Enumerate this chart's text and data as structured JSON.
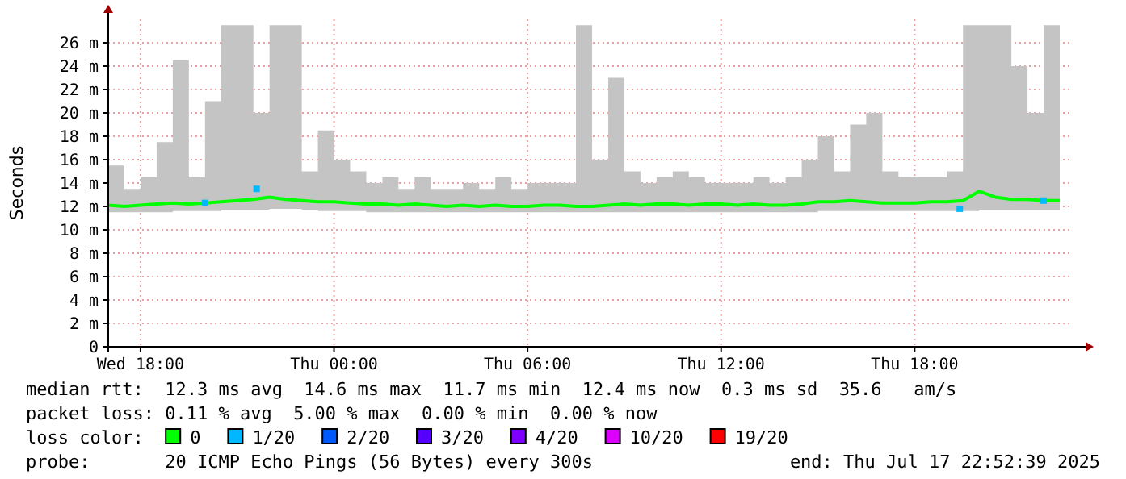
{
  "chart_data": {
    "type": "line",
    "ylabel": "Seconds",
    "legend_title": "loss color:",
    "legend": "bottom",
    "grid": true,
    "xlim": [
      "2025-07-16T17:00",
      "2025-07-17T22:54"
    ],
    "xticks": [
      {
        "value": "2025-07-16T18:00",
        "label": "Wed 18:00"
      },
      {
        "value": "2025-07-17T00:00",
        "label": "Thu 00:00"
      },
      {
        "value": "2025-07-17T06:00",
        "label": "Thu 06:00"
      },
      {
        "value": "2025-07-17T12:00",
        "label": "Thu 12:00"
      },
      {
        "value": "2025-07-17T18:00",
        "label": "Thu 18:00"
      }
    ],
    "ylim": [
      0,
      28
    ],
    "yticks": [
      0,
      {
        "value": 2,
        "label": "2 m"
      },
      {
        "value": 4,
        "label": "4 m"
      },
      {
        "value": 6,
        "label": "6 m"
      },
      {
        "value": 8,
        "label": "8 m"
      },
      {
        "value": 10,
        "label": "10 m"
      },
      {
        "value": 12,
        "label": "12 m"
      },
      {
        "value": 14,
        "label": "14 m"
      },
      {
        "value": 16,
        "label": "16 m"
      },
      {
        "value": 18,
        "label": "18 m"
      },
      {
        "value": 20,
        "label": "20 m"
      },
      {
        "value": 22,
        "label": "22 m"
      },
      {
        "value": 24,
        "label": "24 m"
      },
      {
        "value": 26,
        "label": "26 m"
      }
    ],
    "x": [
      "2025-07-16T17:00",
      "2025-07-16T17:30",
      "2025-07-16T18:00",
      "2025-07-16T18:30",
      "2025-07-16T19:00",
      "2025-07-16T19:30",
      "2025-07-16T20:00",
      "2025-07-16T20:30",
      "2025-07-16T21:00",
      "2025-07-16T21:30",
      "2025-07-16T22:00",
      "2025-07-16T22:30",
      "2025-07-16T23:00",
      "2025-07-16T23:30",
      "2025-07-17T00:00",
      "2025-07-17T00:30",
      "2025-07-17T01:00",
      "2025-07-17T01:30",
      "2025-07-17T02:00",
      "2025-07-17T02:30",
      "2025-07-17T03:00",
      "2025-07-17T03:30",
      "2025-07-17T04:00",
      "2025-07-17T04:30",
      "2025-07-17T05:00",
      "2025-07-17T05:30",
      "2025-07-17T06:00",
      "2025-07-17T06:30",
      "2025-07-17T07:00",
      "2025-07-17T07:30",
      "2025-07-17T08:00",
      "2025-07-17T08:30",
      "2025-07-17T09:00",
      "2025-07-17T09:30",
      "2025-07-17T10:00",
      "2025-07-17T10:30",
      "2025-07-17T11:00",
      "2025-07-17T11:30",
      "2025-07-17T12:00",
      "2025-07-17T12:30",
      "2025-07-17T13:00",
      "2025-07-17T13:30",
      "2025-07-17T14:00",
      "2025-07-17T14:30",
      "2025-07-17T15:00",
      "2025-07-17T15:30",
      "2025-07-17T16:00",
      "2025-07-17T16:30",
      "2025-07-17T17:00",
      "2025-07-17T17:30",
      "2025-07-17T18:00",
      "2025-07-17T18:30",
      "2025-07-17T19:00",
      "2025-07-17T19:30",
      "2025-07-17T20:00",
      "2025-07-17T20:30",
      "2025-07-17T21:00",
      "2025-07-17T21:30",
      "2025-07-17T22:00",
      "2025-07-17T22:30"
    ],
    "series": [
      {
        "name": "0",
        "color": "#00ff00",
        "values": [
          12.1,
          12,
          12.1,
          12.2,
          12.3,
          12.2,
          12.3,
          12.4,
          12.5,
          12.6,
          12.8,
          12.6,
          12.5,
          12.4,
          12.4,
          12.3,
          12.2,
          12.2,
          12.1,
          12.2,
          12.1,
          12,
          12.1,
          12,
          12.1,
          12,
          12,
          12.1,
          12.1,
          12,
          12,
          12.1,
          12.2,
          12.1,
          12.2,
          12.2,
          12.1,
          12.2,
          12.2,
          12.1,
          12.2,
          12.1,
          12.1,
          12.2,
          12.4,
          12.4,
          12.5,
          12.4,
          12.3,
          12.3,
          12.3,
          12.4,
          12.4,
          12.5,
          13.3,
          12.8,
          12.6,
          12.6,
          12.5,
          12.5
        ],
        "lower": [
          11.5,
          11.5,
          11.5,
          11.5,
          11.6,
          11.6,
          11.6,
          11.7,
          11.7,
          11.7,
          11.8,
          11.8,
          11.7,
          11.6,
          11.6,
          11.6,
          11.5,
          11.5,
          11.5,
          11.5,
          11.5,
          11.5,
          11.5,
          11.5,
          11.5,
          11.5,
          11.5,
          11.5,
          11.5,
          11.5,
          11.5,
          11.5,
          11.5,
          11.5,
          11.5,
          11.5,
          11.5,
          11.5,
          11.5,
          11.5,
          11.5,
          11.5,
          11.5,
          11.5,
          11.6,
          11.6,
          11.6,
          11.6,
          11.6,
          11.6,
          11.6,
          11.6,
          11.6,
          11.6,
          11.7,
          11.7,
          11.7,
          11.7,
          11.7,
          11.7
        ],
        "upper": [
          15.5,
          13.5,
          14.5,
          17.5,
          24.5,
          14.5,
          21,
          27.5,
          27.5,
          20,
          27.5,
          27.5,
          15,
          18.5,
          16,
          15,
          14,
          14.5,
          13.5,
          14.5,
          13.5,
          13.5,
          14,
          13.5,
          14.5,
          13.5,
          14,
          14,
          14,
          27.5,
          16,
          23,
          15,
          14,
          14.5,
          15,
          14.5,
          14,
          14,
          14,
          14.5,
          14,
          14.5,
          16,
          18,
          15,
          19,
          20,
          15,
          14.5,
          14.5,
          14.5,
          15,
          27.5,
          27.5,
          27.5,
          24,
          20,
          27.5,
          16
        ]
      },
      {
        "name": "1/20",
        "type": "scatter",
        "color": "#00b8ff",
        "x": [
          "2025-07-16T20:00",
          "2025-07-16T21:36",
          "2025-07-17T19:24",
          "2025-07-17T22:00"
        ],
        "values": [
          12.3,
          13.5,
          11.8,
          12.5
        ]
      },
      {
        "name": "2/20",
        "type": "scatter",
        "color": "#0059ff",
        "values": [
          null,
          null,
          null,
          null,
          null,
          null,
          null,
          null,
          null,
          null,
          null,
          null,
          null,
          null,
          null,
          null,
          null,
          null,
          null,
          null,
          null,
          null,
          null,
          null,
          null,
          null,
          null,
          null,
          null,
          null,
          null,
          null,
          null,
          null,
          null,
          null,
          null,
          null,
          null,
          null,
          null,
          null,
          null,
          null,
          null,
          null,
          null,
          null,
          null,
          null,
          null,
          null,
          null,
          null,
          null,
          null,
          null,
          null,
          null,
          null
        ]
      },
      {
        "name": "3/20",
        "type": "scatter",
        "color": "#5500ff",
        "values": [
          null,
          null,
          null,
          null,
          null,
          null,
          null,
          null,
          null,
          null,
          null,
          null,
          null,
          null,
          null,
          null,
          null,
          null,
          null,
          null,
          null,
          null,
          null,
          null,
          null,
          null,
          null,
          null,
          null,
          null,
          null,
          null,
          null,
          null,
          null,
          null,
          null,
          null,
          null,
          null,
          null,
          null,
          null,
          null,
          null,
          null,
          null,
          null,
          null,
          null,
          null,
          null,
          null,
          null,
          null,
          null,
          null,
          null,
          null,
          null
        ]
      },
      {
        "name": "4/20",
        "type": "scatter",
        "color": "#7e00ff",
        "values": [
          null,
          null,
          null,
          null,
          null,
          null,
          null,
          null,
          null,
          null,
          null,
          null,
          null,
          null,
          null,
          null,
          null,
          null,
          null,
          null,
          null,
          null,
          null,
          null,
          null,
          null,
          null,
          null,
          null,
          null,
          null,
          null,
          null,
          null,
          null,
          null,
          null,
          null,
          null,
          null,
          null,
          null,
          null,
          null,
          null,
          null,
          null,
          null,
          null,
          null,
          null,
          null,
          null,
          null,
          null,
          null,
          null,
          null,
          null,
          null
        ]
      },
      {
        "name": "10/20",
        "type": "scatter",
        "color": "#dd00ff",
        "values": [
          null,
          null,
          null,
          null,
          null,
          null,
          null,
          null,
          null,
          null,
          null,
          null,
          null,
          null,
          null,
          null,
          null,
          null,
          null,
          null,
          null,
          null,
          null,
          null,
          null,
          null,
          null,
          null,
          null,
          null,
          null,
          null,
          null,
          null,
          null,
          null,
          null,
          null,
          null,
          null,
          null,
          null,
          null,
          null,
          null,
          null,
          null,
          null,
          null,
          null,
          null,
          null,
          null,
          null,
          null,
          null,
          null,
          null,
          null,
          null
        ]
      },
      {
        "name": "19/20",
        "type": "scatter",
        "color": "#ff0000",
        "values": [
          null,
          null,
          null,
          null,
          null,
          null,
          null,
          null,
          null,
          null,
          null,
          null,
          null,
          null,
          null,
          null,
          null,
          null,
          null,
          null,
          null,
          null,
          null,
          null,
          null,
          null,
          null,
          null,
          null,
          null,
          null,
          null,
          null,
          null,
          null,
          null,
          null,
          null,
          null,
          null,
          null,
          null,
          null,
          null,
          null,
          null,
          null,
          null,
          null,
          null,
          null,
          null,
          null,
          null,
          null,
          null,
          null,
          null,
          null,
          null
        ]
      }
    ],
    "annotations": [
      "median rtt:  12.3 ms avg  14.6 ms max  11.7 ms min  12.4 ms now  0.3 ms sd  35.6   am/s",
      "packet loss: 0.11 % avg  5.00 % max  0.00 % min  0.00 % now",
      "probe:       20 ICMP Echo Pings (56 Bytes) every 300s",
      "end: Thu Jul 17 22:52:39 2025"
    ]
  }
}
